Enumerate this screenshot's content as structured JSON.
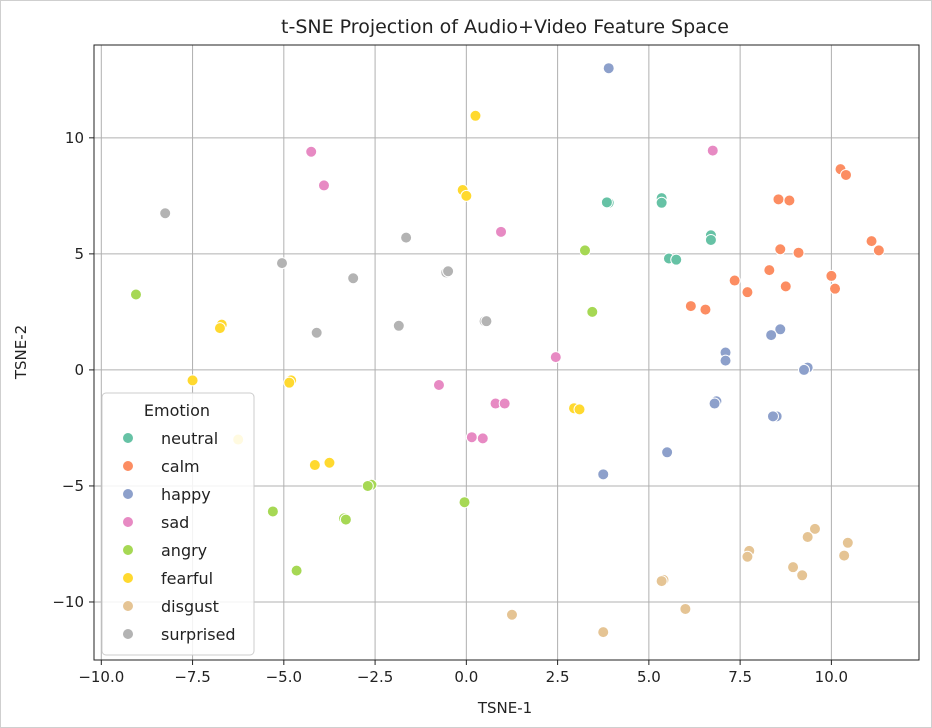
{
  "chart_data": {
    "type": "scatter",
    "title": "t-SNE Projection of Audio+Video Feature Space",
    "xlabel": "TSNE-1",
    "ylabel": "TSNE-2",
    "xlim": [
      -10.2,
      12.4
    ],
    "ylim": [
      -12.5,
      14.0
    ],
    "xticks": [
      -10.0,
      -7.5,
      -5.0,
      -2.5,
      0.0,
      2.5,
      5.0,
      7.5,
      10.0
    ],
    "xtick_labels": [
      "−10.0",
      "−7.5",
      "−5.0",
      "−2.5",
      "0.0",
      "2.5",
      "5.0",
      "7.5",
      "10.0"
    ],
    "yticks": [
      -10,
      -5,
      0,
      5,
      10
    ],
    "ytick_labels": [
      "−10",
      "−5",
      "0",
      "5",
      "10"
    ],
    "grid": true,
    "legend": {
      "title": "Emotion",
      "placement": "lower-left"
    },
    "series": [
      {
        "name": "neutral",
        "color": "#66c2a5",
        "points": [
          [
            3.9,
            7.2
          ],
          [
            3.85,
            7.22
          ],
          [
            5.35,
            7.4
          ],
          [
            5.35,
            7.2
          ],
          [
            6.7,
            5.8
          ],
          [
            6.7,
            5.6
          ],
          [
            5.55,
            4.8
          ],
          [
            5.75,
            4.75
          ]
        ]
      },
      {
        "name": "calm",
        "color": "#fc8d62",
        "points": [
          [
            10.25,
            8.65
          ],
          [
            10.4,
            8.4
          ],
          [
            8.55,
            7.35
          ],
          [
            8.85,
            7.3
          ],
          [
            8.6,
            5.2
          ],
          [
            9.1,
            5.05
          ],
          [
            11.1,
            5.55
          ],
          [
            11.3,
            5.15
          ],
          [
            8.3,
            4.3
          ],
          [
            10.0,
            4.05
          ],
          [
            7.35,
            3.85
          ],
          [
            10.1,
            3.5
          ],
          [
            8.75,
            3.6
          ],
          [
            7.7,
            3.35
          ],
          [
            6.15,
            2.75
          ],
          [
            6.55,
            2.6
          ]
        ]
      },
      {
        "name": "happy",
        "color": "#8da0cb",
        "points": [
          [
            3.9,
            13.0
          ],
          [
            8.6,
            1.75
          ],
          [
            8.35,
            1.5
          ],
          [
            7.1,
            0.75
          ],
          [
            7.1,
            0.4
          ],
          [
            9.35,
            0.1
          ],
          [
            9.25,
            0.0
          ],
          [
            6.85,
            -1.35
          ],
          [
            6.8,
            -1.45
          ],
          [
            8.5,
            -2.0
          ],
          [
            8.4,
            -2.0
          ],
          [
            5.5,
            -3.55
          ],
          [
            3.75,
            -4.5
          ]
        ]
      },
      {
        "name": "sad",
        "color": "#e78ac3",
        "points": [
          [
            -4.25,
            9.4
          ],
          [
            -3.9,
            7.95
          ],
          [
            6.75,
            9.45
          ],
          [
            0.95,
            5.95
          ],
          [
            2.45,
            0.55
          ],
          [
            -0.75,
            -0.65
          ],
          [
            0.8,
            -1.45
          ],
          [
            1.05,
            -1.45
          ],
          [
            0.15,
            -2.9
          ],
          [
            0.45,
            -2.95
          ]
        ]
      },
      {
        "name": "angry",
        "color": "#a6d854",
        "points": [
          [
            -9.05,
            3.25
          ],
          [
            3.25,
            5.15
          ],
          [
            3.45,
            2.5
          ],
          [
            -2.6,
            -4.95
          ],
          [
            -2.7,
            -5.0
          ],
          [
            -5.3,
            -6.1
          ],
          [
            -3.35,
            -6.4
          ],
          [
            -3.3,
            -6.45
          ],
          [
            -0.05,
            -5.7
          ],
          [
            -4.65,
            -8.65
          ]
        ]
      },
      {
        "name": "fearful",
        "color": "#ffd92f",
        "points": [
          [
            0.25,
            10.95
          ],
          [
            -0.1,
            7.75
          ],
          [
            0.0,
            7.5
          ],
          [
            -6.7,
            1.95
          ],
          [
            -6.75,
            1.8
          ],
          [
            -7.5,
            -0.45
          ],
          [
            -4.8,
            -0.45
          ],
          [
            -4.85,
            -0.55
          ],
          [
            -6.25,
            -3.0
          ],
          [
            -4.15,
            -4.1
          ],
          [
            -3.75,
            -4.0
          ],
          [
            2.95,
            -1.65
          ],
          [
            3.1,
            -1.7
          ]
        ]
      },
      {
        "name": "disgust",
        "color": "#e5c494",
        "points": [
          [
            9.55,
            -6.85
          ],
          [
            9.35,
            -7.2
          ],
          [
            10.45,
            -7.45
          ],
          [
            7.75,
            -7.8
          ],
          [
            7.7,
            -8.05
          ],
          [
            10.35,
            -8.0
          ],
          [
            8.95,
            -8.5
          ],
          [
            9.2,
            -8.85
          ],
          [
            5.4,
            -9.05
          ],
          [
            5.35,
            -9.1
          ],
          [
            6.0,
            -10.3
          ],
          [
            1.25,
            -10.55
          ],
          [
            3.75,
            -11.3
          ]
        ]
      },
      {
        "name": "surprised",
        "color": "#b3b3b3",
        "points": [
          [
            -8.25,
            6.75
          ],
          [
            -1.65,
            5.7
          ],
          [
            -5.05,
            4.6
          ],
          [
            -0.55,
            4.2
          ],
          [
            -0.5,
            4.25
          ],
          [
            -3.1,
            3.95
          ],
          [
            0.5,
            2.1
          ],
          [
            0.55,
            2.1
          ],
          [
            -1.85,
            1.9
          ],
          [
            -4.1,
            1.6
          ]
        ]
      }
    ]
  }
}
